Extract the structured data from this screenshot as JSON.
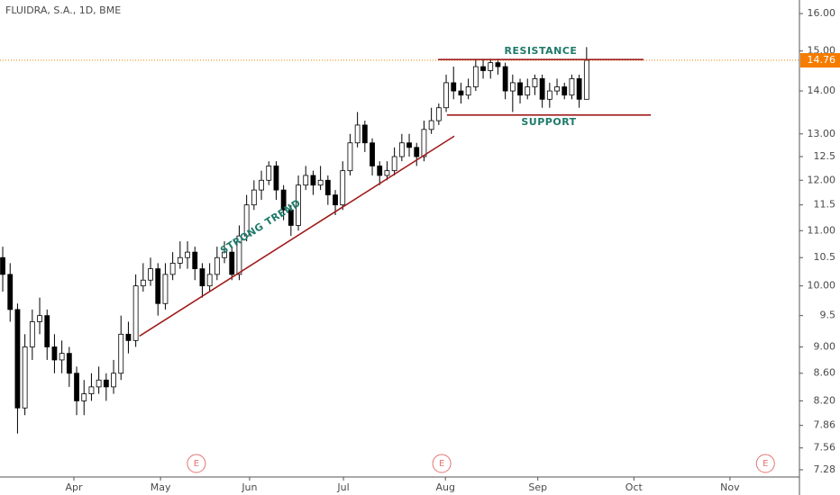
{
  "chart_data": {
    "type": "candlestick",
    "title": "FLUIDRA, S.A., 1D, BME",
    "log_scale": true,
    "up_color": "#ffffff",
    "down_color": "#000000",
    "outline_color": "#000000",
    "open": [
      10.5,
      10.2,
      9.6,
      8.1,
      9.0,
      9.4,
      9.5,
      9.0,
      8.8,
      8.9,
      8.6,
      8.2,
      8.3,
      8.4,
      8.5,
      8.4,
      8.6,
      9.2,
      9.1,
      10.0,
      10.1,
      10.3,
      9.7,
      10.2,
      10.4,
      10.5,
      10.6,
      10.3,
      10.0,
      10.2,
      10.5,
      10.6,
      10.2,
      10.9,
      11.5,
      11.8,
      12.0,
      12.3,
      11.8,
      11.4,
      11.1,
      11.9,
      12.1,
      11.9,
      12.0,
      11.7,
      11.5,
      12.2,
      12.8,
      13.2,
      12.8,
      12.3,
      12.1,
      12.2,
      12.5,
      12.8,
      12.7,
      12.5,
      13.1,
      13.3,
      13.6,
      14.2,
      14.0,
      13.9,
      14.1,
      14.6,
      14.5,
      14.7,
      14.6,
      14.0,
      14.2,
      13.9,
      14.1,
      14.3,
      13.8,
      14.0,
      14.1,
      13.9,
      14.3,
      13.8
    ],
    "high": [
      10.7,
      10.4,
      9.7,
      9.2,
      9.6,
      9.8,
      9.6,
      9.2,
      9.1,
      9.0,
      8.7,
      8.5,
      8.6,
      8.7,
      8.6,
      8.8,
      9.5,
      9.4,
      10.2,
      10.4,
      10.5,
      10.4,
      10.4,
      10.6,
      10.8,
      10.8,
      10.7,
      10.4,
      10.4,
      10.7,
      10.8,
      10.7,
      11.1,
      11.7,
      12.0,
      12.2,
      12.4,
      12.4,
      11.9,
      11.5,
      12.1,
      12.3,
      12.2,
      12.3,
      12.1,
      11.8,
      12.4,
      13.0,
      13.5,
      13.3,
      12.9,
      12.4,
      12.4,
      12.7,
      13.0,
      13.0,
      12.8,
      13.3,
      13.6,
      13.7,
      14.4,
      14.6,
      14.2,
      14.3,
      14.8,
      14.8,
      14.8,
      14.8,
      14.7,
      14.4,
      14.3,
      14.3,
      14.4,
      14.4,
      14.2,
      14.3,
      14.2,
      14.4,
      14.4,
      15.1
    ],
    "low": [
      9.9,
      9.4,
      7.75,
      8.0,
      8.8,
      9.2,
      8.8,
      8.6,
      8.6,
      8.4,
      8.0,
      8.0,
      8.2,
      8.3,
      8.2,
      8.3,
      8.5,
      8.9,
      9.0,
      9.9,
      10.0,
      9.5,
      9.6,
      10.1,
      10.3,
      10.3,
      10.1,
      9.8,
      9.9,
      10.1,
      10.4,
      10.1,
      10.1,
      10.8,
      11.4,
      11.6,
      11.9,
      11.6,
      11.2,
      10.9,
      11.0,
      11.8,
      11.7,
      11.8,
      11.5,
      11.3,
      11.4,
      12.1,
      12.7,
      12.6,
      12.1,
      11.9,
      12.0,
      12.1,
      12.4,
      12.5,
      12.3,
      12.4,
      13.0,
      13.2,
      13.5,
      13.8,
      13.7,
      13.8,
      14.0,
      14.3,
      14.3,
      14.4,
      13.8,
      13.5,
      13.7,
      13.8,
      13.9,
      13.6,
      13.6,
      13.9,
      13.8,
      13.8,
      13.6,
      13.8
    ],
    "close": [
      10.2,
      9.6,
      8.1,
      9.0,
      9.4,
      9.5,
      9.0,
      8.8,
      8.9,
      8.6,
      8.2,
      8.3,
      8.4,
      8.5,
      8.4,
      8.6,
      9.2,
      9.1,
      10.0,
      10.1,
      10.3,
      9.7,
      10.2,
      10.4,
      10.5,
      10.6,
      10.3,
      10.0,
      10.2,
      10.5,
      10.6,
      10.2,
      10.9,
      11.5,
      11.8,
      12.0,
      12.3,
      11.8,
      11.4,
      11.1,
      11.9,
      12.1,
      11.9,
      12.0,
      11.7,
      11.5,
      12.2,
      12.8,
      13.2,
      12.8,
      12.3,
      12.1,
      12.2,
      12.5,
      12.8,
      12.7,
      12.5,
      13.1,
      13.3,
      13.6,
      14.2,
      14.0,
      13.9,
      14.1,
      14.6,
      14.5,
      14.7,
      14.6,
      14.0,
      14.2,
      13.9,
      14.1,
      14.3,
      13.8,
      14.0,
      14.1,
      13.9,
      14.3,
      13.8,
      14.76
    ],
    "xlim": [
      -0.37,
      107.8
    ],
    "xticks": [
      {
        "value": 9.63,
        "label": "Apr"
      },
      {
        "value": 21.35,
        "label": "May"
      },
      {
        "value": 33.4,
        "label": "Jun"
      },
      {
        "value": 46.1,
        "label": "Jul"
      },
      {
        "value": 59.9,
        "label": "Aug"
      },
      {
        "value": 72.4,
        "label": "Sep"
      },
      {
        "value": 85.4,
        "label": "Oct"
      },
      {
        "value": 98.4,
        "label": "Nov"
      }
    ],
    "ylim": [
      7.19,
      16.38
    ],
    "yticks": [
      {
        "value": 16,
        "label": "16.00"
      },
      {
        "value": 15,
        "label": "15.00"
      },
      {
        "value": 14,
        "label": "14.00"
      },
      {
        "value": 13,
        "label": "13.00"
      },
      12.5,
      {
        "value": 12,
        "label": "12.00"
      },
      11.5,
      {
        "value": 11,
        "label": "11.00"
      },
      10.5,
      {
        "value": 10,
        "label": "10.00"
      },
      9.5,
      {
        "value": 9,
        "label": "9.00"
      },
      {
        "value": 8.6,
        "label": "8.60"
      },
      {
        "value": 8.2,
        "label": "8.20"
      },
      7.86,
      7.56,
      7.28
    ],
    "last_price": 14.76,
    "last_price_color": "#f57c00",
    "annotations": [
      {
        "text": "RESISTANCE",
        "x": [
          58.9,
          86.7
        ],
        "y": [
          14.78,
          14.78
        ],
        "color": "#a01c1c",
        "text_color": "#1e7a6a"
      },
      {
        "text": "SUPPORT",
        "x": [
          60.1,
          87.7
        ],
        "y": [
          13.43,
          13.43
        ],
        "color": "#a01c1c",
        "text_color": "#1e7a6a"
      },
      {
        "text": "STRONG TREND",
        "x": [
          18.5,
          61.1
        ],
        "y": [
          9.17,
          12.95
        ],
        "color": "#a01c1c",
        "text_color": "#1e7a6a"
      }
    ],
    "events": [
      {
        "label": "E",
        "x": 26.2
      },
      {
        "label": "E",
        "x": 59.4
      },
      {
        "label": "E",
        "x": 103.2
      }
    ],
    "event_color": "#e57373"
  }
}
